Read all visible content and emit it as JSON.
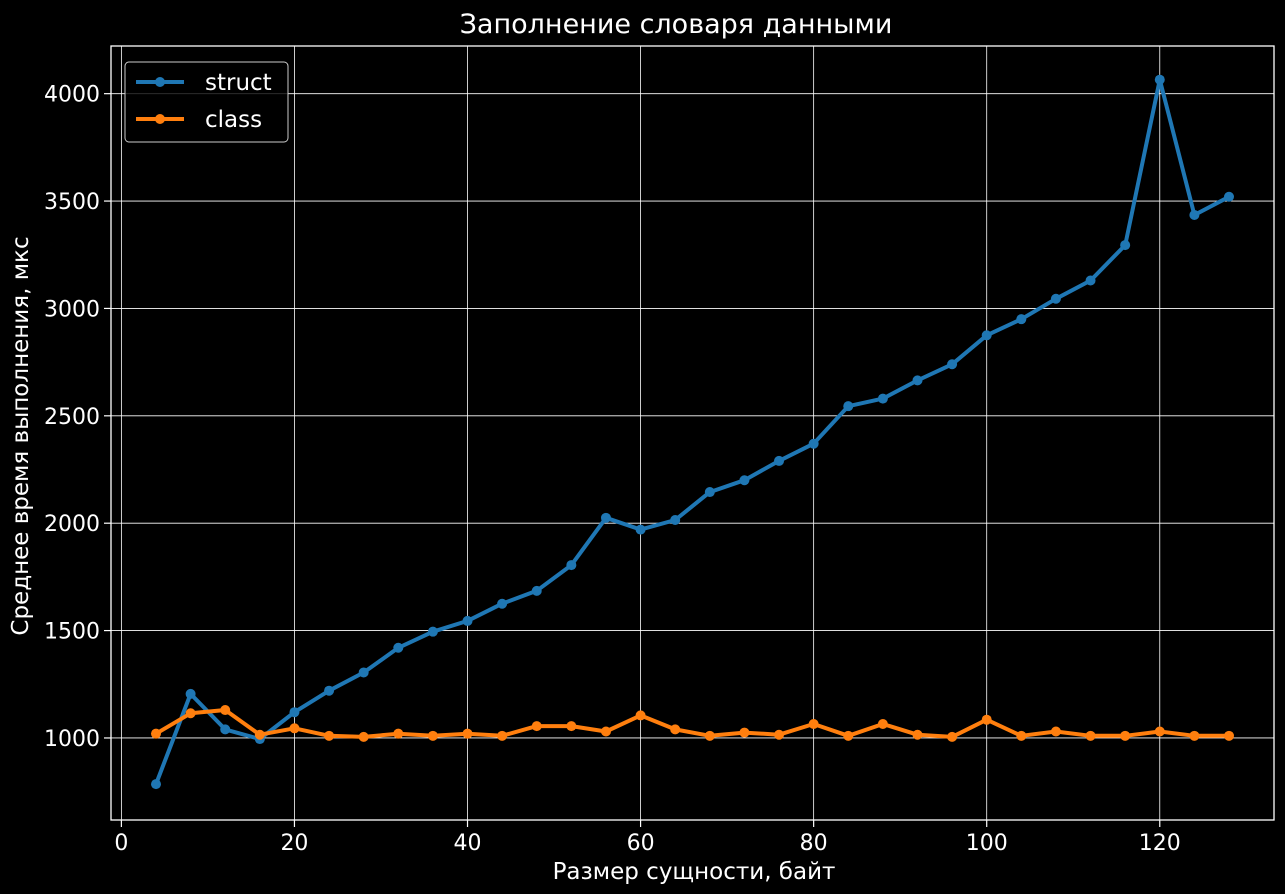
{
  "chart_data": {
    "type": "line",
    "title": "Заполнение словаря данными",
    "xlabel": "Размер сущности, байт",
    "ylabel": "Среднее время выполнения, мкс",
    "xlim": [
      -1.2,
      133.2
    ],
    "ylim": [
      618,
      4222
    ],
    "xticks": [
      0,
      20,
      40,
      60,
      80,
      100,
      120
    ],
    "yticks": [
      1000,
      1500,
      2000,
      2500,
      3000,
      3500,
      4000
    ],
    "xtick_labels": [
      "0",
      "20",
      "40",
      "60",
      "80",
      "100",
      "120"
    ],
    "ytick_labels": [
      "1000",
      "1500",
      "2000",
      "2500",
      "3000",
      "3500",
      "4000"
    ],
    "grid": true,
    "legend_position": "upper-left",
    "x": [
      4,
      8,
      12,
      16,
      20,
      24,
      28,
      32,
      36,
      40,
      44,
      48,
      52,
      56,
      60,
      64,
      68,
      72,
      76,
      80,
      84,
      88,
      92,
      96,
      100,
      104,
      108,
      112,
      116,
      120,
      124,
      128
    ],
    "series": [
      {
        "name": "struct",
        "color": "#1f77b4",
        "values": [
          785,
          1205,
          1040,
          995,
          1120,
          1220,
          1305,
          1420,
          1495,
          1545,
          1625,
          1685,
          1805,
          2025,
          1970,
          2015,
          2145,
          2200,
          2290,
          2370,
          2545,
          2580,
          2665,
          2740,
          2875,
          2950,
          3045,
          3130,
          3295,
          4065,
          3435,
          3520
        ]
      },
      {
        "name": "class",
        "color": "#ff7f0e",
        "values": [
          1020,
          1115,
          1130,
          1015,
          1045,
          1010,
          1005,
          1020,
          1010,
          1020,
          1010,
          1055,
          1055,
          1030,
          1105,
          1040,
          1010,
          1025,
          1015,
          1065,
          1010,
          1065,
          1015,
          1005,
          1085,
          1010,
          1030,
          1010,
          1010,
          1030,
          1010,
          1010
        ]
      }
    ]
  }
}
